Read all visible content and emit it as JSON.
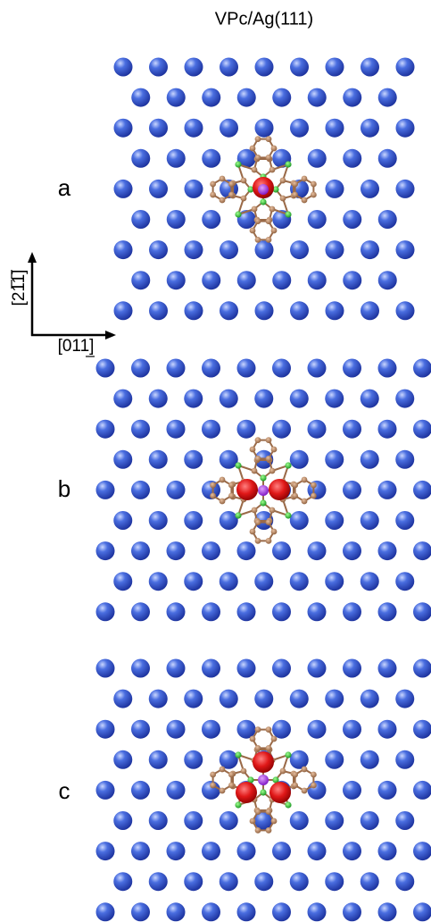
{
  "title": "VPc/Ag(111)",
  "panels": [
    {
      "label": "a"
    },
    {
      "label": "b"
    },
    {
      "label": "c"
    }
  ],
  "axes": {
    "vertical": "[211]",
    "horizontal": "[011]"
  }
}
